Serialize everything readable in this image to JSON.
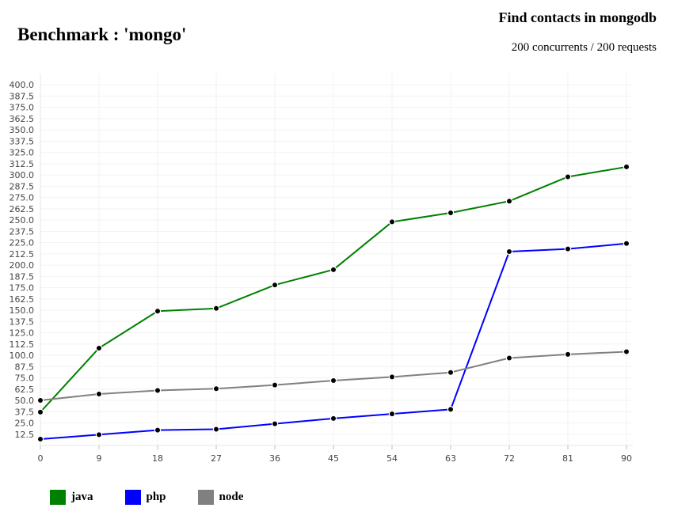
{
  "header": {
    "title": "Benchmark : 'mongo'",
    "subtitle": "Find contacts in mongodb",
    "detail": "200 concurrents / 200 requests"
  },
  "chart_data": {
    "type": "line",
    "title": "Benchmark : 'mongo'",
    "subtitle": "Find contacts in mongodb",
    "x": [
      0,
      9,
      18,
      27,
      36,
      45,
      54,
      63,
      72,
      81,
      90
    ],
    "x_ticks": [
      "0",
      "9",
      "18",
      "27",
      "36",
      "45",
      "54",
      "63",
      "72",
      "81",
      "90"
    ],
    "ylim": [
      0,
      412.5
    ],
    "y_ticks": [
      "12.5",
      "25.0",
      "37.5",
      "50.0",
      "62.5",
      "75.0",
      "87.5",
      "100.0",
      "112.5",
      "125.0",
      "137.5",
      "150.0",
      "162.5",
      "175.0",
      "187.5",
      "200.0",
      "212.5",
      "225.0",
      "237.5",
      "250.0",
      "262.5",
      "275.0",
      "287.5",
      "300.0",
      "312.5",
      "325.0",
      "337.5",
      "350.0",
      "362.5",
      "375.0",
      "387.5",
      "400.0"
    ],
    "grid": true,
    "legend_position": "bottom-left",
    "series": [
      {
        "name": "java",
        "color": "#008000",
        "values": [
          37,
          108,
          149,
          152,
          178,
          195,
          248,
          258,
          271,
          298,
          309
        ]
      },
      {
        "name": "php",
        "color": "#0000ff",
        "values": [
          7,
          12,
          17,
          18,
          24,
          30,
          35,
          40,
          215,
          218,
          224
        ]
      },
      {
        "name": "node",
        "color": "#808080",
        "values": [
          50,
          57,
          61,
          63,
          67,
          72,
          76,
          81,
          97,
          101,
          104
        ]
      }
    ],
    "marker_color": "#000000"
  }
}
